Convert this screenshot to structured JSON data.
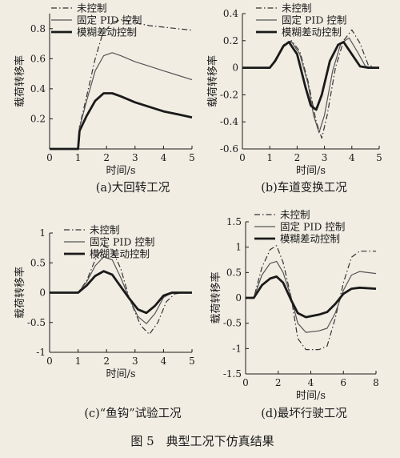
{
  "figure_caption": "图 5　典型工况下仿真结果",
  "legend_labels": [
    "未控制",
    "固定 PID 控制",
    "模糊差动控制"
  ],
  "colors": {
    "uncontrolled": "#333333",
    "pid": "#555555",
    "fuzzy": "#1a1a1a",
    "background": "#f1ede3"
  },
  "chart_data": [
    {
      "type": "line",
      "caption": "(a)大回转工况",
      "xlabel": "时间/s",
      "ylabel": "载荷转移率",
      "xlim": [
        0,
        5
      ],
      "ylim": [
        0,
        0.9
      ],
      "xticks": [
        0,
        1,
        2,
        3,
        4,
        5
      ],
      "yticks": [
        0.2,
        0.4,
        0.6,
        0.8
      ],
      "grid": false,
      "legend_position": "top-left",
      "series": [
        {
          "name": "未控制",
          "style": "dashdot",
          "points": [
            [
              0,
              0
            ],
            [
              1,
              0
            ],
            [
              1.05,
              0.15
            ],
            [
              1.3,
              0.35
            ],
            [
              1.6,
              0.6
            ],
            [
              1.85,
              0.76
            ],
            [
              2.2,
              0.84
            ],
            [
              2.5,
              0.86
            ],
            [
              3,
              0.84
            ],
            [
              3.5,
              0.82
            ],
            [
              4,
              0.81
            ],
            [
              4.5,
              0.8
            ],
            [
              5,
              0.79
            ]
          ]
        },
        {
          "name": "固定 PID 控制",
          "style": "solid",
          "points": [
            [
              0,
              0
            ],
            [
              1,
              0
            ],
            [
              1.05,
              0.14
            ],
            [
              1.3,
              0.32
            ],
            [
              1.6,
              0.52
            ],
            [
              1.9,
              0.62
            ],
            [
              2.2,
              0.64
            ],
            [
              2.5,
              0.62
            ],
            [
              3,
              0.58
            ],
            [
              3.5,
              0.55
            ],
            [
              4,
              0.52
            ],
            [
              4.5,
              0.49
            ],
            [
              5,
              0.46
            ]
          ]
        },
        {
          "name": "模糊差动控制",
          "style": "thick",
          "points": [
            [
              0,
              0
            ],
            [
              1,
              0
            ],
            [
              1.05,
              0.12
            ],
            [
              1.3,
              0.22
            ],
            [
              1.6,
              0.32
            ],
            [
              1.9,
              0.37
            ],
            [
              2.2,
              0.37
            ],
            [
              2.5,
              0.35
            ],
            [
              3,
              0.31
            ],
            [
              3.5,
              0.28
            ],
            [
              4,
              0.25
            ],
            [
              4.5,
              0.23
            ],
            [
              5,
              0.21
            ]
          ]
        }
      ]
    },
    {
      "type": "line",
      "caption": "(b)车道变换工况",
      "xlabel": "时间/s",
      "ylabel": "载荷转移率",
      "xlim": [
        0,
        5
      ],
      "ylim": [
        -0.6,
        0.4
      ],
      "xticks": [
        0,
        1,
        2,
        3,
        4,
        5
      ],
      "yticks": [
        -0.6,
        -0.4,
        -0.2,
        0,
        0.2,
        0.4
      ],
      "grid": false,
      "legend_position": "top-right",
      "series": [
        {
          "name": "未控制",
          "style": "dashdot",
          "points": [
            [
              0,
              0
            ],
            [
              1,
              0
            ],
            [
              1.2,
              0.06
            ],
            [
              1.5,
              0.17
            ],
            [
              1.8,
              0.2
            ],
            [
              2.1,
              0.12
            ],
            [
              2.4,
              -0.1
            ],
            [
              2.7,
              -0.4
            ],
            [
              2.9,
              -0.52
            ],
            [
              3.1,
              -0.35
            ],
            [
              3.4,
              0.0
            ],
            [
              3.7,
              0.2
            ],
            [
              4.0,
              0.28
            ],
            [
              4.3,
              0.18
            ],
            [
              4.6,
              0.02
            ],
            [
              4.9,
              0
            ],
            [
              5,
              0
            ]
          ]
        },
        {
          "name": "固定 PID 控制",
          "style": "solid",
          "points": [
            [
              0,
              0
            ],
            [
              1,
              0
            ],
            [
              1.2,
              0.06
            ],
            [
              1.5,
              0.17
            ],
            [
              1.8,
              0.19
            ],
            [
              2.1,
              0.1
            ],
            [
              2.4,
              -0.12
            ],
            [
              2.6,
              -0.35
            ],
            [
              2.8,
              -0.48
            ],
            [
              3.0,
              -0.35
            ],
            [
              3.3,
              -0.02
            ],
            [
              3.6,
              0.18
            ],
            [
              3.9,
              0.22
            ],
            [
              4.2,
              0.12
            ],
            [
              4.5,
              0.01
            ],
            [
              4.8,
              0
            ],
            [
              5,
              0
            ]
          ]
        },
        {
          "name": "模糊差动控制",
          "style": "thick",
          "points": [
            [
              0,
              0
            ],
            [
              1,
              0
            ],
            [
              1.2,
              0.05
            ],
            [
              1.5,
              0.16
            ],
            [
              1.7,
              0.19
            ],
            [
              2.0,
              0.1
            ],
            [
              2.3,
              -0.14
            ],
            [
              2.5,
              -0.28
            ],
            [
              2.7,
              -0.31
            ],
            [
              2.9,
              -0.2
            ],
            [
              3.2,
              0.05
            ],
            [
              3.5,
              0.17
            ],
            [
              3.7,
              0.19
            ],
            [
              4.0,
              0.1
            ],
            [
              4.3,
              0.01
            ],
            [
              4.6,
              0
            ],
            [
              5,
              0
            ]
          ]
        }
      ]
    },
    {
      "type": "line",
      "caption": "(c)“鱼钩”试验工况",
      "xlabel": "时间/s",
      "ylabel": "载荷转移率",
      "xlim": [
        0,
        5
      ],
      "ylim": [
        -1.0,
        1.0
      ],
      "xticks": [
        0,
        1,
        2,
        3,
        4,
        5
      ],
      "yticks": [
        -1.0,
        -0.5,
        0,
        0.5,
        1.0
      ],
      "grid": false,
      "legend_position": "top-right",
      "series": [
        {
          "name": "未控制",
          "style": "dashdot",
          "points": [
            [
              0,
              0
            ],
            [
              1,
              0
            ],
            [
              1.3,
              0.2
            ],
            [
              1.6,
              0.55
            ],
            [
              1.9,
              0.78
            ],
            [
              2.2,
              0.72
            ],
            [
              2.5,
              0.4
            ],
            [
              2.8,
              -0.1
            ],
            [
              3.2,
              -0.55
            ],
            [
              3.5,
              -0.7
            ],
            [
              3.8,
              -0.5
            ],
            [
              4.1,
              -0.15
            ],
            [
              4.4,
              -0.02
            ],
            [
              4.7,
              0
            ],
            [
              5,
              0
            ]
          ]
        },
        {
          "name": "固定 PID 控制",
          "style": "solid",
          "points": [
            [
              0,
              0
            ],
            [
              1,
              0
            ],
            [
              1.3,
              0.18
            ],
            [
              1.6,
              0.45
            ],
            [
              1.9,
              0.6
            ],
            [
              2.2,
              0.55
            ],
            [
              2.5,
              0.25
            ],
            [
              2.8,
              -0.1
            ],
            [
              3.1,
              -0.4
            ],
            [
              3.4,
              -0.52
            ],
            [
              3.7,
              -0.35
            ],
            [
              4.0,
              -0.08
            ],
            [
              4.3,
              0
            ],
            [
              5,
              0
            ]
          ]
        },
        {
          "name": "模糊差动控制",
          "style": "thick",
          "points": [
            [
              0,
              0
            ],
            [
              1,
              0
            ],
            [
              1.3,
              0.12
            ],
            [
              1.6,
              0.28
            ],
            [
              1.9,
              0.36
            ],
            [
              2.2,
              0.3
            ],
            [
              2.5,
              0.1
            ],
            [
              2.8,
              -0.1
            ],
            [
              3.1,
              -0.28
            ],
            [
              3.4,
              -0.34
            ],
            [
              3.7,
              -0.22
            ],
            [
              4.0,
              -0.05
            ],
            [
              4.3,
              0
            ],
            [
              5,
              0
            ]
          ]
        }
      ]
    },
    {
      "type": "line",
      "caption": "(d)最坏行驶工况",
      "xlabel": "时间/s",
      "ylabel": "载荷转移率",
      "xlim": [
        0,
        8
      ],
      "ylim": [
        -1.5,
        1.5
      ],
      "xticks": [
        0,
        2,
        4,
        6,
        8
      ],
      "yticks": [
        -1.5,
        -1.0,
        -0.5,
        0,
        0.5,
        1.0,
        1.5
      ],
      "grid": false,
      "legend_position": "top-right",
      "series": [
        {
          "name": "未控制",
          "style": "dashdot",
          "points": [
            [
              0,
              0
            ],
            [
              0.5,
              0
            ],
            [
              1.0,
              0.6
            ],
            [
              1.5,
              0.95
            ],
            [
              1.9,
              1.03
            ],
            [
              2.3,
              0.7
            ],
            [
              2.8,
              0
            ],
            [
              3.2,
              -0.8
            ],
            [
              3.7,
              -1.02
            ],
            [
              4.5,
              -1.02
            ],
            [
              5.0,
              -0.95
            ],
            [
              5.5,
              -0.4
            ],
            [
              6.0,
              0.3
            ],
            [
              6.5,
              0.8
            ],
            [
              7.0,
              0.92
            ],
            [
              8,
              0.92
            ]
          ]
        },
        {
          "name": "固定 PID 控制",
          "style": "solid",
          "points": [
            [
              0,
              0
            ],
            [
              0.5,
              0
            ],
            [
              1.0,
              0.45
            ],
            [
              1.5,
              0.68
            ],
            [
              1.9,
              0.72
            ],
            [
              2.3,
              0.5
            ],
            [
              2.8,
              0
            ],
            [
              3.2,
              -0.5
            ],
            [
              3.7,
              -0.68
            ],
            [
              4.5,
              -0.65
            ],
            [
              5.0,
              -0.6
            ],
            [
              5.5,
              -0.3
            ],
            [
              6.0,
              0.15
            ],
            [
              6.5,
              0.45
            ],
            [
              7.0,
              0.52
            ],
            [
              8,
              0.48
            ]
          ]
        },
        {
          "name": "模糊差动控制",
          "style": "thick",
          "points": [
            [
              0,
              0
            ],
            [
              0.5,
              0
            ],
            [
              1.0,
              0.25
            ],
            [
              1.5,
              0.38
            ],
            [
              1.9,
              0.42
            ],
            [
              2.3,
              0.3
            ],
            [
              2.8,
              -0.05
            ],
            [
              3.2,
              -0.3
            ],
            [
              3.7,
              -0.38
            ],
            [
              4.5,
              -0.33
            ],
            [
              5.0,
              -0.28
            ],
            [
              5.5,
              -0.12
            ],
            [
              6.0,
              0.08
            ],
            [
              6.5,
              0.18
            ],
            [
              7.0,
              0.2
            ],
            [
              8,
              0.18
            ]
          ]
        }
      ]
    }
  ]
}
